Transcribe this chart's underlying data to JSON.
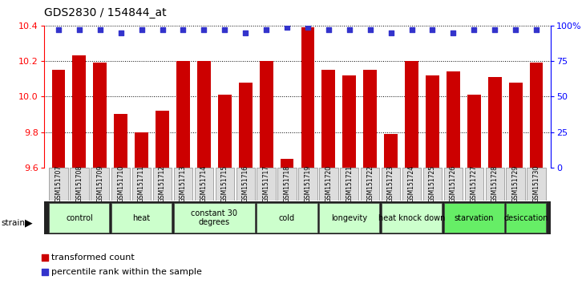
{
  "title": "GDS2830 / 154844_at",
  "samples": [
    "GSM151707",
    "GSM151708",
    "GSM151709",
    "GSM151710",
    "GSM151711",
    "GSM151712",
    "GSM151713",
    "GSM151714",
    "GSM151715",
    "GSM151716",
    "GSM151717",
    "GSM151718",
    "GSM151719",
    "GSM151720",
    "GSM151721",
    "GSM151722",
    "GSM151723",
    "GSM151724",
    "GSM151725",
    "GSM151726",
    "GSM151727",
    "GSM151728",
    "GSM151729",
    "GSM151730"
  ],
  "bar_values": [
    10.15,
    10.23,
    10.19,
    9.9,
    9.8,
    9.92,
    10.2,
    10.2,
    10.01,
    10.08,
    10.2,
    9.65,
    10.39,
    10.15,
    10.12,
    10.15,
    9.79,
    10.2,
    10.12,
    10.14,
    10.01,
    10.11,
    10.08,
    10.19
  ],
  "percentile_values": [
    97,
    97,
    97,
    95,
    97,
    97,
    97,
    97,
    97,
    95,
    97,
    99,
    99,
    97,
    97,
    97,
    95,
    97,
    97,
    95,
    97,
    97,
    97,
    97
  ],
  "groups": [
    {
      "label": "control",
      "start": 0,
      "end": 2,
      "color": "#ccffcc"
    },
    {
      "label": "heat",
      "start": 3,
      "end": 5,
      "color": "#ccffcc"
    },
    {
      "label": "constant 30\ndegrees",
      "start": 6,
      "end": 9,
      "color": "#ccffcc"
    },
    {
      "label": "cold",
      "start": 10,
      "end": 12,
      "color": "#ccffcc"
    },
    {
      "label": "longevity",
      "start": 13,
      "end": 15,
      "color": "#ccffcc"
    },
    {
      "label": "heat knock down",
      "start": 16,
      "end": 18,
      "color": "#ccffcc"
    },
    {
      "label": "starvation",
      "start": 19,
      "end": 21,
      "color": "#66ee66"
    },
    {
      "label": "desiccation",
      "start": 22,
      "end": 23,
      "color": "#66ee66"
    }
  ],
  "bar_color": "#cc0000",
  "dot_color": "#3333cc",
  "ylim_left": [
    9.6,
    10.4
  ],
  "yticks_left": [
    9.6,
    9.8,
    10.0,
    10.2,
    10.4
  ],
  "ylim_right": [
    0,
    100
  ],
  "yticks_right": [
    0,
    25,
    50,
    75,
    100
  ]
}
